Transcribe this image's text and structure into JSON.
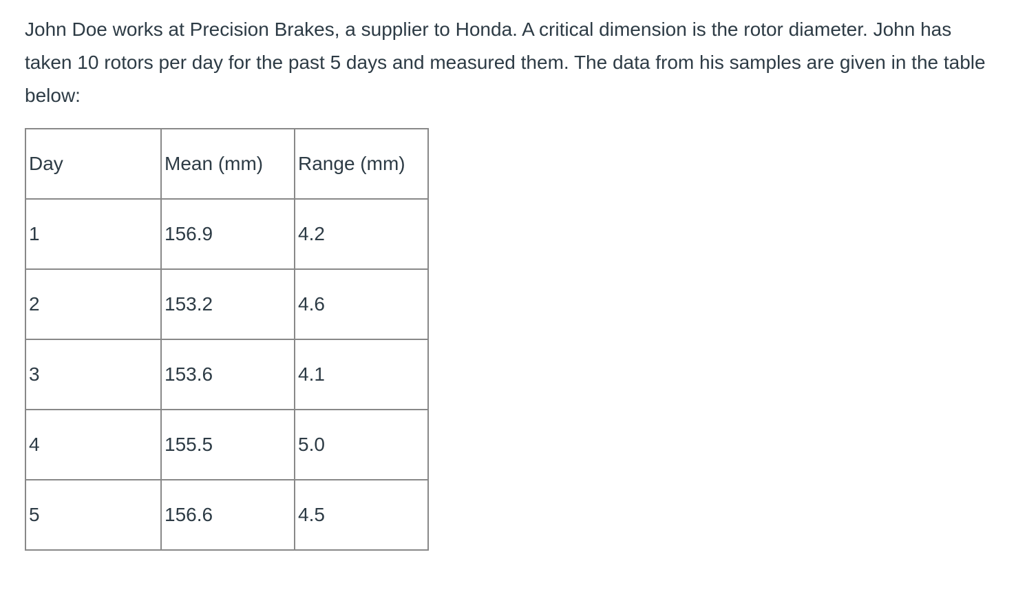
{
  "paragraph": "John Doe works at Precision Brakes, a supplier to Honda. A critical dimension is the rotor diameter. John has taken 10 rotors per day for the past 5 days and measured them. The data from his samples are given in the table below:",
  "table": {
    "headers": [
      "Day",
      "Mean (mm)",
      "Range (mm)"
    ],
    "rows": [
      [
        "1",
        "156.9",
        "4.2"
      ],
      [
        "2",
        "153.2",
        "4.6"
      ],
      [
        "3",
        "153.6",
        "4.1"
      ],
      [
        "4",
        "155.5",
        "5.0"
      ],
      [
        "5",
        "156.6",
        "4.5"
      ]
    ]
  }
}
